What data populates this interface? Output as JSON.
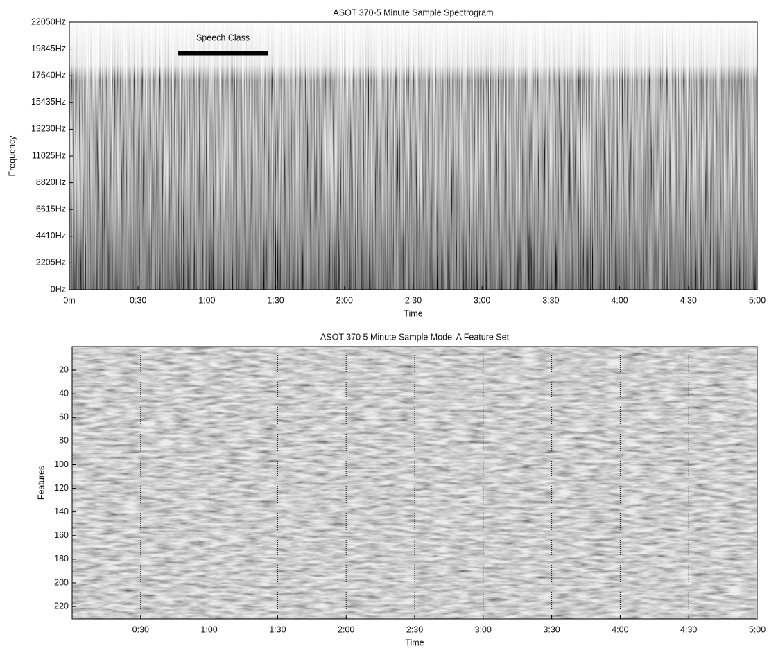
{
  "chart_data": [
    {
      "type": "spectrogram",
      "title": "ASOT 370-5 Minute Sample Spectrogram",
      "x_label": "Time",
      "y_label": "Frequency",
      "xlim": [
        0,
        300
      ],
      "xticks": [
        {
          "value": 0,
          "label": "0m"
        },
        {
          "value": 30,
          "label": "0:30"
        },
        {
          "value": 60,
          "label": "1:00"
        },
        {
          "value": 90,
          "label": "1:30"
        },
        {
          "value": 120,
          "label": "2:00"
        },
        {
          "value": 150,
          "label": "2:30"
        },
        {
          "value": 180,
          "label": "3:00"
        },
        {
          "value": 210,
          "label": "3:30"
        },
        {
          "value": 240,
          "label": "4:00"
        },
        {
          "value": 270,
          "label": "4:30"
        },
        {
          "value": 300,
          "label": "5:00"
        }
      ],
      "ylim": [
        0,
        22050
      ],
      "yticks": [
        {
          "value": 0,
          "label": "0Hz"
        },
        {
          "value": 2205,
          "label": "2205Hz"
        },
        {
          "value": 4410,
          "label": "4410Hz"
        },
        {
          "value": 6615,
          "label": "6615Hz"
        },
        {
          "value": 8820,
          "label": "8820Hz"
        },
        {
          "value": 11025,
          "label": "11025Hz"
        },
        {
          "value": 13230,
          "label": "13230Hz"
        },
        {
          "value": 15435,
          "label": "15435Hz"
        },
        {
          "value": 17640,
          "label": "17640Hz"
        },
        {
          "value": 19845,
          "label": "19845Hz"
        },
        {
          "value": 22050,
          "label": "22050Hz"
        }
      ],
      "xgrid": false,
      "annotations": [
        {
          "label": "Speech Class",
          "start": 47.5,
          "end": 86.5,
          "y": 19480
        }
      ]
    },
    {
      "type": "heatmap",
      "title": "ASOT 370 5 Minute Sample Model A Feature Set",
      "x_label": "Time",
      "y_label": "Features",
      "xlim": [
        0,
        300
      ],
      "xticks": [
        {
          "value": 30,
          "label": "0:30"
        },
        {
          "value": 60,
          "label": "1:00"
        },
        {
          "value": 90,
          "label": "1:30"
        },
        {
          "value": 120,
          "label": "2:00"
        },
        {
          "value": 150,
          "label": "2:30"
        },
        {
          "value": 180,
          "label": "3:00"
        },
        {
          "value": 210,
          "label": "3:30"
        },
        {
          "value": 240,
          "label": "4:00"
        },
        {
          "value": 270,
          "label": "4:30"
        },
        {
          "value": 300,
          "label": "5:00"
        }
      ],
      "ylim": [
        0,
        230.5
      ],
      "y_inverted": true,
      "yticks": [
        20,
        40,
        60,
        80,
        100,
        120,
        140,
        160,
        180,
        200,
        220
      ],
      "xgrid": true
    }
  ]
}
